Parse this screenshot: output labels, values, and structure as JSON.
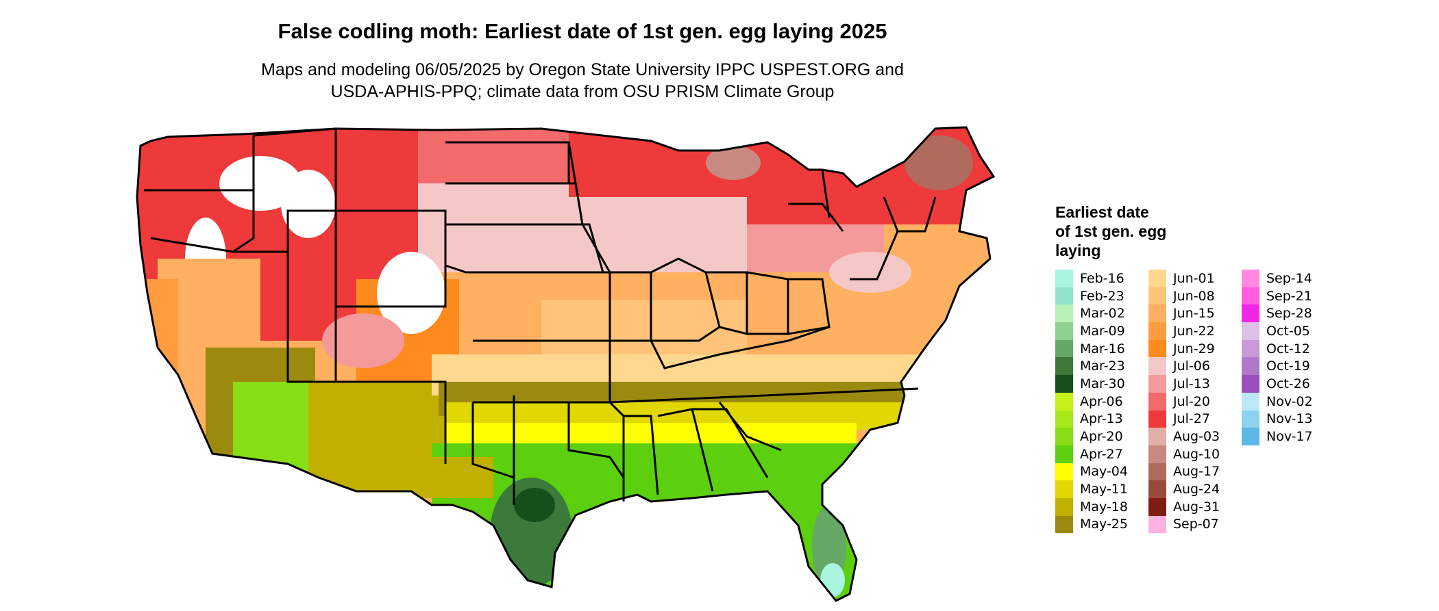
{
  "title": "False codling moth: Earliest date of 1st gen. egg laying 2025",
  "subtitle_line1": "Maps and modeling 06/05/2025 by Oregon State University IPPC USPEST.ORG and",
  "subtitle_line2": "USDA-APHIS-PPQ; climate data from OSU PRISM Climate Group",
  "legend": {
    "title_line1": "Earliest date",
    "title_line2": "of 1st gen. egg",
    "title_line3": "laying",
    "columns": [
      [
        {
          "label": "Feb-16",
          "color": "#a8f5e0"
        },
        {
          "label": "Feb-23",
          "color": "#8fe3cc"
        },
        {
          "label": "Mar-02",
          "color": "#b6f2b6"
        },
        {
          "label": "Mar-09",
          "color": "#8ed08e"
        },
        {
          "label": "Mar-16",
          "color": "#66a866"
        },
        {
          "label": "Mar-23",
          "color": "#3b7a3b"
        },
        {
          "label": "Mar-30",
          "color": "#14501a"
        },
        {
          "label": "Apr-06",
          "color": "#c6f21a"
        },
        {
          "label": "Apr-13",
          "color": "#a8e81a"
        },
        {
          "label": "Apr-20",
          "color": "#88de14"
        },
        {
          "label": "Apr-27",
          "color": "#5ccf0f"
        },
        {
          "label": "May-04",
          "color": "#ffff00"
        },
        {
          "label": "May-11",
          "color": "#e0d800"
        },
        {
          "label": "May-18",
          "color": "#c2b000"
        },
        {
          "label": "May-25",
          "color": "#9c8a0e"
        }
      ],
      [
        {
          "label": "Jun-01",
          "color": "#ffd890"
        },
        {
          "label": "Jun-08",
          "color": "#ffc47a"
        },
        {
          "label": "Jun-15",
          "color": "#ffb060"
        },
        {
          "label": "Jun-22",
          "color": "#ff9c40"
        },
        {
          "label": "Jun-29",
          "color": "#ff8a1e"
        },
        {
          "label": "Jul-06",
          "color": "#f5c8c8"
        },
        {
          "label": "Jul-13",
          "color": "#f59a9a"
        },
        {
          "label": "Jul-20",
          "color": "#f26a6a"
        },
        {
          "label": "Jul-27",
          "color": "#ee3a3a"
        },
        {
          "label": "Aug-03",
          "color": "#e0b0a8"
        },
        {
          "label": "Aug-10",
          "color": "#c88a80"
        },
        {
          "label": "Aug-17",
          "color": "#b06a5e"
        },
        {
          "label": "Aug-24",
          "color": "#984a3c"
        },
        {
          "label": "Aug-31",
          "color": "#7e1e12"
        },
        {
          "label": "Sep-07",
          "color": "#ffb2e0"
        }
      ],
      [
        {
          "label": "Sep-14",
          "color": "#ff88e0"
        },
        {
          "label": "Sep-21",
          "color": "#ff5ce0"
        },
        {
          "label": "Sep-28",
          "color": "#f026e8"
        },
        {
          "label": "Oct-05",
          "color": "#dcc0e8"
        },
        {
          "label": "Oct-12",
          "color": "#c89ad8"
        },
        {
          "label": "Oct-19",
          "color": "#b078cc"
        },
        {
          "label": "Oct-26",
          "color": "#9a4ec0"
        },
        {
          "label": "Nov-02",
          "color": "#bce8f8"
        },
        {
          "label": "Nov-13",
          "color": "#8cd2ee"
        },
        {
          "label": "Nov-17",
          "color": "#5cb8e6"
        }
      ]
    ]
  }
}
